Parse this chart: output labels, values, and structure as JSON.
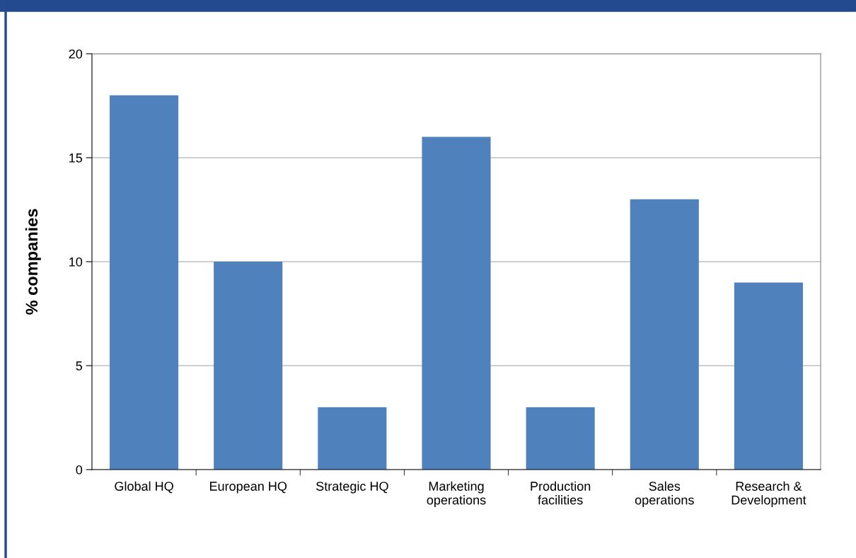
{
  "chart_data": {
    "type": "bar",
    "ylabel": "% companies",
    "categories": [
      "Global HQ",
      "European HQ",
      "Strategic HQ",
      "Marketing\noperations",
      "Production\nfacilities",
      "Sales\noperations",
      "Research &\nDevelopment"
    ],
    "values": [
      18,
      10,
      3,
      16,
      3,
      13,
      9
    ],
    "color": "#4f81bd",
    "ylim": [
      0,
      20
    ],
    "yticks": [
      0,
      5,
      10,
      15,
      20
    ],
    "grid": "y",
    "legend": false
  }
}
